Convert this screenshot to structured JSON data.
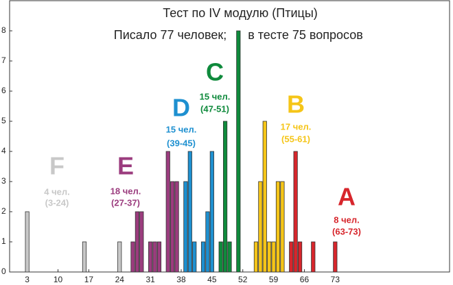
{
  "chart_data": {
    "type": "bar",
    "title": "Тест по IV модулю (Птицы)",
    "subtitle": [
      "Писало 77 человек;",
      "в тесте 75 вопросов"
    ],
    "xlim": [
      -1,
      99
    ],
    "ylim": [
      0,
      9
    ],
    "xticks": [
      3,
      10,
      17,
      24,
      31,
      38,
      45,
      52,
      59,
      66,
      73
    ],
    "yticks": [
      0,
      1,
      2,
      3,
      4,
      5,
      6,
      7,
      8
    ],
    "series": [
      {
        "letter": "F",
        "count_label": "4 чел.",
        "range_label": "(3-24)",
        "color": "#c8c8c8",
        "x": [
          3,
          16,
          24
        ],
        "values": [
          2,
          1,
          1
        ]
      },
      {
        "letter": "E",
        "count_label": "18 чел.",
        "range_label": "(27-37)",
        "color": "#9b3c7e",
        "x": [
          27,
          28,
          29,
          31,
          32,
          33,
          35,
          36,
          37
        ],
        "values": [
          1,
          2,
          2,
          1,
          1,
          1,
          4,
          3,
          3
        ]
      },
      {
        "letter": "D",
        "count_label": "15 чел.",
        "range_label": "(39-45)",
        "color": "#1e90d0",
        "x": [
          39,
          40,
          41,
          43,
          44,
          45
        ],
        "values": [
          3,
          4,
          1,
          1,
          2,
          4
        ]
      },
      {
        "letter": "C",
        "count_label": "15 чел.",
        "range_label": "(47-51)",
        "color": "#0f8a3c",
        "x": [
          47,
          48,
          49,
          51
        ],
        "values": [
          1,
          5,
          1,
          8
        ]
      },
      {
        "letter": "B",
        "count_label": "17 чел.",
        "range_label": "(55-61)",
        "color": "#f5c518",
        "x": [
          55,
          56,
          57,
          58,
          59,
          60,
          61
        ],
        "values": [
          1,
          3,
          5,
          1,
          1,
          3,
          3
        ]
      },
      {
        "letter": "A",
        "count_label": "8 чел.",
        "range_label": "(63-73)",
        "color": "#d7262c",
        "x": [
          63,
          64,
          65,
          68,
          73
        ],
        "values": [
          1,
          4,
          1,
          1,
          1
        ]
      }
    ]
  }
}
